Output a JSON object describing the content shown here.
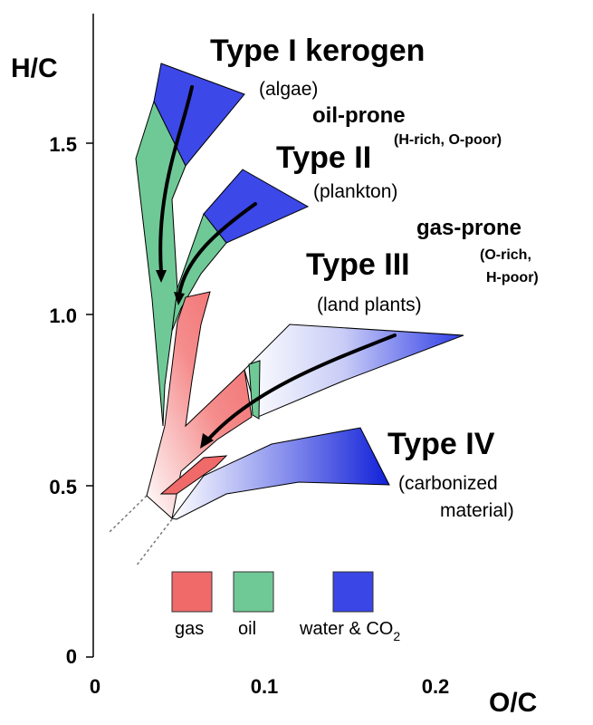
{
  "axes": {
    "y_title": "H/C",
    "x_title": "O/C",
    "y_ticks": [
      "0",
      "0.5",
      "1.0",
      "1.5"
    ],
    "x_ticks": [
      "0",
      "0.1",
      "0.2"
    ]
  },
  "labels": {
    "type1": "Type I kerogen",
    "type1_source": "(algae)",
    "oil_prone": "oil-prone",
    "oil_prone_detail": "(H-rich, O-poor)",
    "type2": "Type II",
    "type2_source": "(plankton)",
    "gas_prone": "gas-prone",
    "gas_prone_detail_1": "(O-rich,",
    "gas_prone_detail_2": "H-poor)",
    "type3": "Type III",
    "type3_source": "(land plants)",
    "type4": "Type IV",
    "type4_source_1": "(carbonized",
    "type4_source_2": "material)"
  },
  "legend": {
    "gas": "gas",
    "oil": "oil",
    "water": "water & CO",
    "water_sub": "2"
  },
  "colors": {
    "gas": "#f06a6a",
    "oil": "#6fc996",
    "water": "#3b46e6"
  }
}
